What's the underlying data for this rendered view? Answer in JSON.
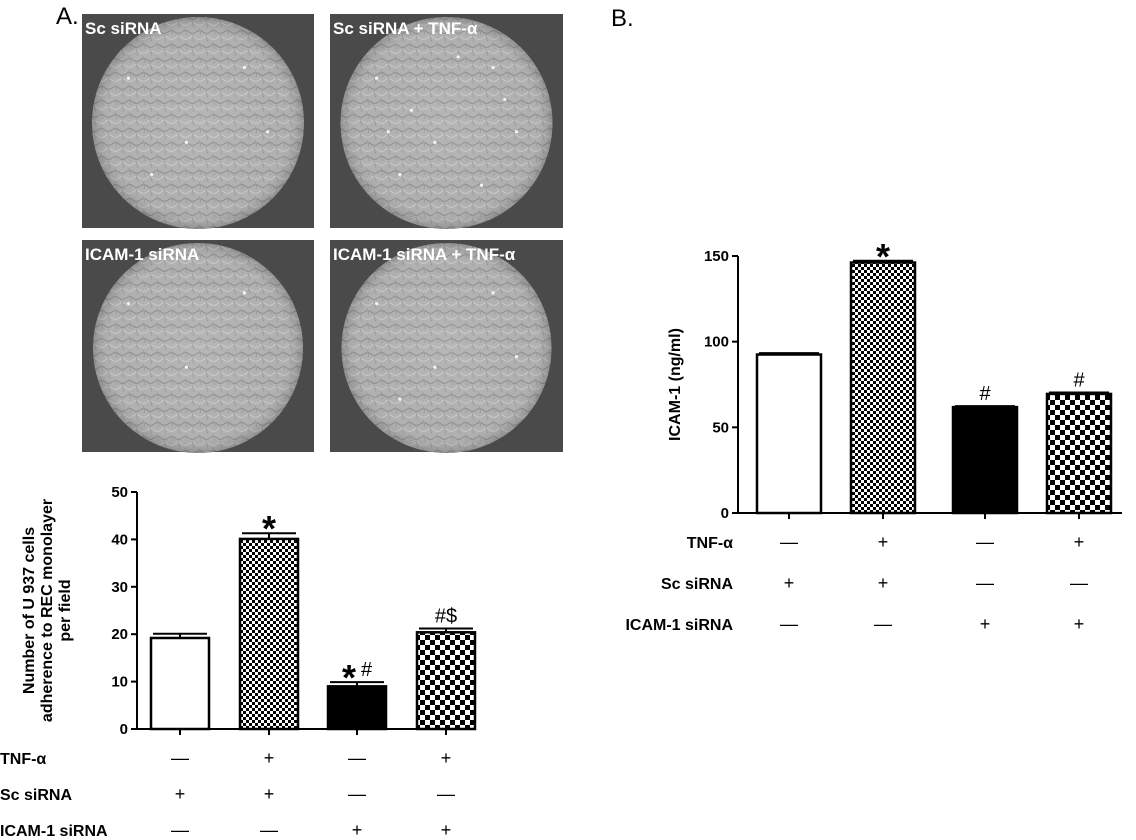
{
  "panel_a": {
    "letter": "A.",
    "micrographs": [
      {
        "label": "Sc siRNA"
      },
      {
        "label": "Sc siRNA + TNF-α"
      },
      {
        "label": "ICAM-1 siRNA"
      },
      {
        "label": "ICAM-1 siRNA + TNF-α"
      }
    ]
  },
  "panel_b": {
    "letter": "B."
  },
  "colors": {
    "open_bar": "#ffffff",
    "fine_check_a": "#000000",
    "fine_check_b": "#ffffff",
    "solid_bar": "#000000",
    "micrograph_bg": "#4a4a4a",
    "micrograph_disc": "#b4b4b4"
  },
  "chart_data": [
    {
      "type": "bar",
      "panel": "A",
      "title": "",
      "xlabel": "",
      "ylabel": "Number of U 937 cells adherence to REC monolayer per field",
      "ylabel_lines": [
        "Number of U 937 cells",
        "adherence to REC monolayer",
        "per field"
      ],
      "ylim": [
        0,
        50
      ],
      "yticks": [
        0,
        10,
        20,
        30,
        40,
        50
      ],
      "grid": false,
      "values": [
        19.2,
        40.1,
        9.0,
        20.4
      ],
      "errors": [
        0.9,
        1.2,
        0.9,
        0.8
      ],
      "annotations": [
        "",
        "*",
        "*#",
        "#$"
      ],
      "fills": [
        "open",
        "fine-check",
        "solid",
        "coarse-check"
      ],
      "condition_rows": [
        {
          "label": "TNF-α",
          "signs": [
            "—",
            "+",
            "—",
            "+"
          ]
        },
        {
          "label": "Sc siRNA",
          "signs": [
            "+",
            "+",
            "—",
            "—"
          ]
        },
        {
          "label": "ICAM-1 siRNA",
          "signs": [
            "—",
            "—",
            "+",
            "+"
          ]
        }
      ]
    },
    {
      "type": "bar",
      "panel": "B",
      "title": "",
      "xlabel": "",
      "ylabel": "ICAM-1 (ng/ml)",
      "ylim": [
        0,
        150
      ],
      "yticks": [
        0,
        50,
        100,
        150
      ],
      "grid": false,
      "values": [
        92.5,
        146.2,
        61.8,
        69.5
      ],
      "errors": [
        0.8,
        1.0,
        0.6,
        0.8
      ],
      "annotations": [
        "",
        "*",
        "#",
        "#"
      ],
      "fills": [
        "open",
        "fine-check",
        "solid",
        "coarse-check"
      ],
      "condition_rows": [
        {
          "label": "TNF-α",
          "signs": [
            "—",
            "+",
            "—",
            "+"
          ]
        },
        {
          "label": "Sc siRNA",
          "signs": [
            "+",
            "+",
            "—",
            "—"
          ]
        },
        {
          "label": "ICAM-1 siRNA",
          "signs": [
            "—",
            "—",
            "+",
            "+"
          ]
        }
      ]
    }
  ]
}
